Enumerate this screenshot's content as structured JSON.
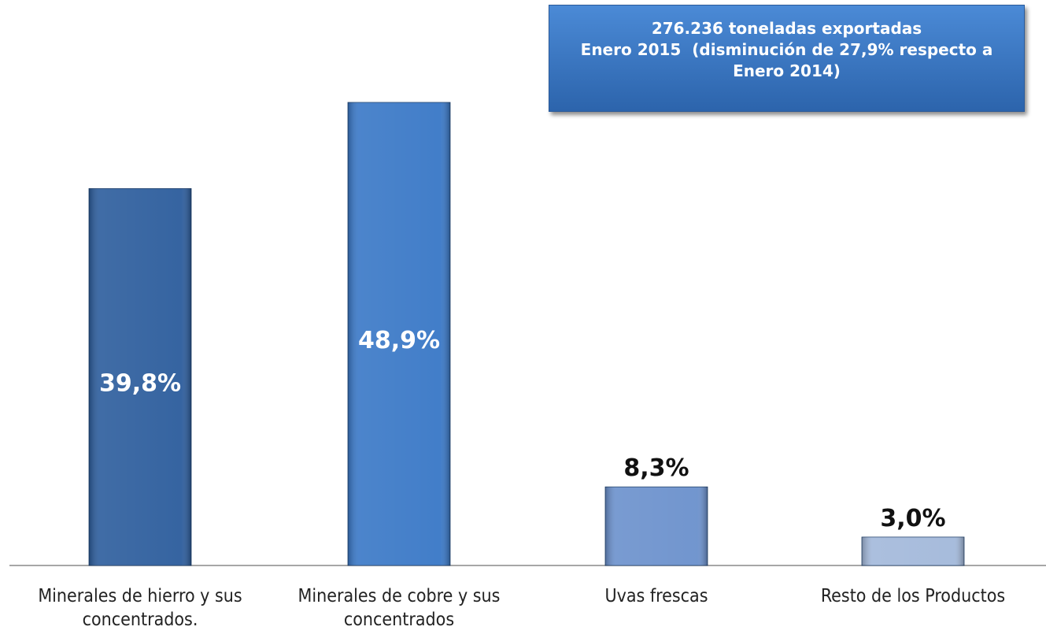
{
  "chart_data": {
    "type": "bar",
    "categories": [
      "Minerales de hierro y sus concentrados.",
      "Minerales de cobre y sus concentrados",
      "Uvas frescas",
      "Resto de los Productos"
    ],
    "values": [
      39.8,
      48.9,
      8.3,
      3.0
    ],
    "value_labels": [
      "39,8%",
      "48,9%",
      "8,3%",
      "3,0%"
    ],
    "colors": [
      "#2b5c9c",
      "#3877c6",
      "#6a90cc",
      "#a2b8da"
    ],
    "annotation": [
      "276.236 toneladas exportadas",
      "Enero 2015  (disminución de 27,9% respecto a",
      "Enero 2014)"
    ]
  }
}
